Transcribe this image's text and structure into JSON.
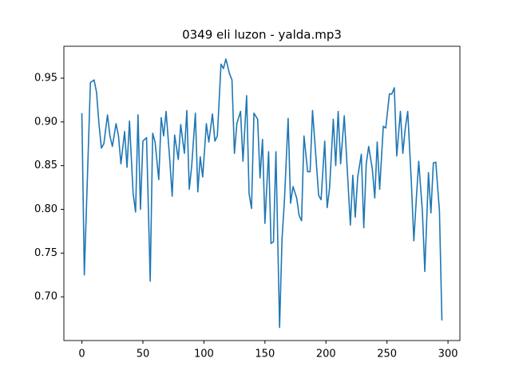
{
  "chart_data": {
    "type": "line",
    "title": "0349 eli luzon - yalda.mp3",
    "x": [
      0,
      2,
      5,
      7,
      10,
      12,
      14,
      16,
      18,
      21,
      23,
      25,
      28,
      30,
      32,
      35,
      37,
      39,
      42,
      44,
      46,
      48,
      50,
      53,
      56,
      58,
      60,
      63,
      65,
      67,
      69,
      72,
      74,
      76,
      79,
      81,
      84,
      86,
      88,
      90,
      93,
      95,
      97,
      99,
      102,
      104,
      107,
      109,
      111,
      114,
      116,
      118,
      121,
      123,
      125,
      127,
      130,
      132,
      135,
      137,
      139,
      141,
      144,
      146,
      148,
      150,
      153,
      155,
      157,
      159,
      162,
      164,
      166,
      169,
      171,
      173,
      176,
      178,
      180,
      182,
      185,
      187,
      189,
      191,
      194,
      196,
      199,
      201,
      203,
      206,
      208,
      210,
      212,
      215,
      217,
      220,
      222,
      224,
      226,
      229,
      231,
      233,
      235,
      238,
      240,
      242,
      244,
      247,
      249,
      252,
      254,
      256,
      258,
      261,
      263,
      265,
      267,
      270,
      272,
      274,
      276,
      279,
      281,
      284,
      286,
      288,
      290,
      293,
      295
    ],
    "series": [
      {
        "color": "#1f77b4",
        "values": [
          0.91,
          0.725,
          0.857,
          0.945,
          0.948,
          0.934,
          0.898,
          0.87,
          0.875,
          0.908,
          0.884,
          0.872,
          0.898,
          0.884,
          0.852,
          0.889,
          0.848,
          0.901,
          0.818,
          0.797,
          0.908,
          0.8,
          0.878,
          0.882,
          0.718,
          0.887,
          0.877,
          0.834,
          0.905,
          0.884,
          0.912,
          0.857,
          0.815,
          0.885,
          0.857,
          0.897,
          0.864,
          0.913,
          0.823,
          0.85,
          0.91,
          0.82,
          0.86,
          0.837,
          0.898,
          0.877,
          0.909,
          0.878,
          0.884,
          0.966,
          0.961,
          0.972,
          0.955,
          0.948,
          0.864,
          0.898,
          0.912,
          0.855,
          0.93,
          0.818,
          0.801,
          0.91,
          0.903,
          0.836,
          0.88,
          0.784,
          0.866,
          0.761,
          0.763,
          0.866,
          0.665,
          0.766,
          0.811,
          0.904,
          0.807,
          0.826,
          0.813,
          0.793,
          0.787,
          0.884,
          0.843,
          0.843,
          0.913,
          0.875,
          0.816,
          0.811,
          0.878,
          0.802,
          0.825,
          0.903,
          0.85,
          0.912,
          0.852,
          0.907,
          0.857,
          0.782,
          0.839,
          0.791,
          0.837,
          0.863,
          0.779,
          0.852,
          0.872,
          0.846,
          0.813,
          0.877,
          0.823,
          0.895,
          0.893,
          0.932,
          0.932,
          0.939,
          0.861,
          0.912,
          0.864,
          0.893,
          0.912,
          0.83,
          0.764,
          0.811,
          0.855,
          0.798,
          0.729,
          0.842,
          0.796,
          0.853,
          0.854,
          0.798,
          0.673
        ]
      }
    ],
    "xlim": [
      -14.75,
      309.75
    ],
    "xticks": [
      0,
      50,
      100,
      150,
      200,
      250,
      300
    ],
    "ylim": [
      0.65,
      0.9865
    ],
    "yticks": [
      {
        "value": 0.7,
        "label": "0.70"
      },
      0.75,
      {
        "value": 0.8,
        "label": "0.80"
      },
      0.85,
      {
        "value": 0.9,
        "label": "0.90"
      },
      0.95
    ]
  }
}
